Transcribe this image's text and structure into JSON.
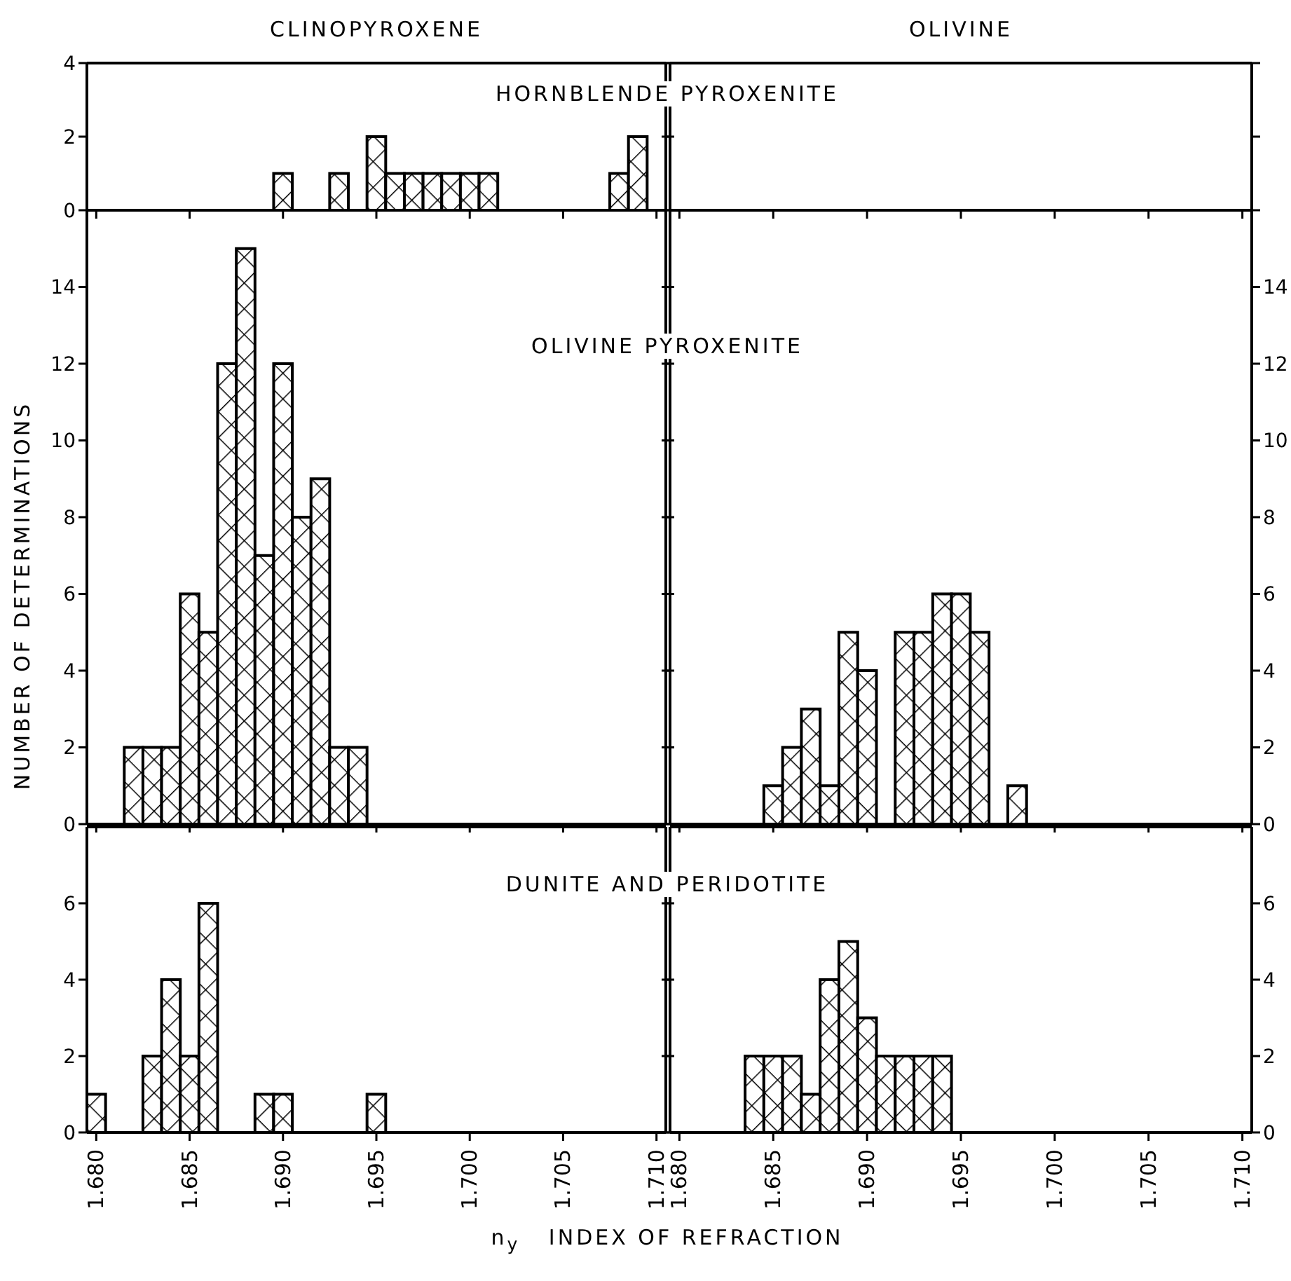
{
  "chart_data": [
    {
      "type": "histogram",
      "title": "CLINOPYROXENE",
      "annotations": [
        "HORNBLENDE PYROXENITE"
      ],
      "color": "#000000",
      "bins": [
        1.6895,
        1.6905,
        1.6915,
        1.6925,
        1.6935,
        1.6945,
        1.6955,
        1.6965,
        1.6975,
        1.6985,
        1.6995,
        1.7005,
        1.7015,
        1.7025,
        1.7035,
        1.7045,
        1.7055,
        1.7065,
        1.7075,
        1.7085,
        1.7095
      ],
      "values": [
        1,
        0,
        0,
        1,
        0,
        2,
        1,
        1,
        1,
        1,
        1,
        1,
        0,
        0,
        0,
        0,
        0,
        0,
        1,
        2
      ],
      "xlim": [
        1.6795,
        1.7105
      ],
      "xticks": [
        1.68,
        1.685,
        1.69,
        1.695,
        1.7,
        1.705,
        1.71
      ],
      "ylim": [
        0,
        4
      ],
      "yticks": [
        0,
        2,
        4
      ],
      "tick_labels": "y"
    },
    {
      "type": "histogram",
      "title": "OLIVINE",
      "color": "#000000",
      "xlim": [
        1.6795,
        1.7105
      ],
      "xticks": [
        1.68,
        1.685,
        1.69,
        1.695,
        1.7,
        1.705,
        1.71
      ],
      "ylim": [
        0,
        4
      ],
      "yticks": [
        0,
        2,
        4
      ],
      "tick_labels": false
    },
    {
      "type": "histogram",
      "ylabel": "NUMBER OF DETERMINATIONS",
      "annotations": [
        "OLIVINE PYROXENITE"
      ],
      "color": "#000000",
      "bins": [
        1.6815,
        1.6825,
        1.6835,
        1.6845,
        1.6855,
        1.6865,
        1.6875,
        1.6885,
        1.6895,
        1.6905,
        1.6915,
        1.6925,
        1.6935,
        1.6945
      ],
      "values": [
        2,
        2,
        2,
        6,
        5,
        12,
        15,
        7,
        12,
        8,
        9,
        2,
        2
      ],
      "xlim": [
        1.6795,
        1.7105
      ],
      "xticks": [
        1.68,
        1.685,
        1.69,
        1.695,
        1.7,
        1.705,
        1.71
      ],
      "ylim": [
        0,
        16
      ],
      "yticks": [
        0,
        2,
        4,
        6,
        8,
        10,
        12,
        14
      ],
      "tick_labels": "y"
    },
    {
      "type": "histogram",
      "color": "#000000",
      "bins": [
        1.6845,
        1.6855,
        1.6865,
        1.6875,
        1.6885,
        1.6895,
        1.6905,
        1.6915,
        1.6925,
        1.6935,
        1.6945,
        1.6955,
        1.6965,
        1.6975,
        1.6985
      ],
      "values": [
        1,
        2,
        3,
        1,
        5,
        4,
        0,
        5,
        5,
        6,
        6,
        5,
        0,
        1
      ],
      "xlim": [
        1.6795,
        1.7105
      ],
      "xticks": [
        1.68,
        1.685,
        1.69,
        1.695,
        1.7,
        1.705,
        1.71
      ],
      "ylim": [
        0,
        16
      ],
      "yticks": [
        0,
        2,
        4,
        6,
        8,
        10,
        12,
        14
      ],
      "tick_labels": "y"
    },
    {
      "type": "histogram",
      "xlabel": "n$_{y}$   INDEX OF REFRACTION",
      "annotations": [
        "DUNITE AND PERIDOTITE"
      ],
      "color": "#000000",
      "bins": [
        1.6795,
        1.6805,
        1.6815,
        1.6825,
        1.6835,
        1.6845,
        1.6855,
        1.6865,
        1.6875,
        1.6885,
        1.6895,
        1.6905,
        1.6915,
        1.6925,
        1.6935,
        1.6945,
        1.6955
      ],
      "values": [
        1,
        0,
        0,
        2,
        4,
        2,
        6,
        0,
        0,
        1,
        1,
        0,
        0,
        0,
        0,
        1
      ],
      "xlim": [
        1.6795,
        1.7105
      ],
      "xticks": [
        {
          "value": 1.68,
          "label": "1.680"
        },
        {
          "value": 1.685,
          "label": "1.685"
        },
        {
          "value": 1.69,
          "label": "1.690"
        },
        {
          "value": 1.695,
          "label": "1.695"
        },
        {
          "value": 1.7,
          "label": "1.700"
        },
        {
          "value": 1.705,
          "label": "1.705"
        },
        {
          "value": 1.71,
          "label": "1.710"
        }
      ],
      "ylim": [
        0,
        8
      ],
      "yticks": [
        0,
        2,
        4,
        6
      ]
    },
    {
      "type": "histogram",
      "color": "#000000",
      "bins": [
        1.6835,
        1.6845,
        1.6855,
        1.6865,
        1.6875,
        1.6885,
        1.6895,
        1.6905,
        1.6915,
        1.6925,
        1.6935,
        1.6945
      ],
      "values": [
        2,
        2,
        2,
        1,
        4,
        5,
        3,
        2,
        2,
        2,
        2
      ],
      "xlim": [
        1.6795,
        1.7105
      ],
      "xticks": [
        {
          "value": 1.68,
          "label": "1.680"
        },
        {
          "value": 1.685,
          "label": "1.685"
        },
        {
          "value": 1.69,
          "label": "1.690"
        },
        {
          "value": 1.695,
          "label": "1.695"
        },
        {
          "value": 1.7,
          "label": "1.700"
        },
        {
          "value": 1.705,
          "label": "1.705"
        },
        {
          "value": 1.71,
          "label": "1.710"
        }
      ],
      "ylim": [
        0,
        8
      ],
      "yticks": [
        0,
        2,
        4,
        6
      ]
    }
  ]
}
